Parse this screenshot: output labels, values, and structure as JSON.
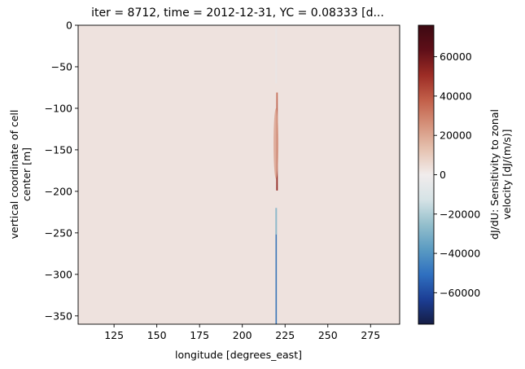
{
  "chart_data": {
    "type": "heatmap",
    "title": "iter = 8712, time = 2012-12-31, YC = 0.08333 [d...",
    "xlabel": "longitude [degrees_east]",
    "ylabel_lines": [
      "vertical coordinate of cell",
      "center [m]"
    ],
    "xlim": [
      104,
      292
    ],
    "ylim": [
      -360,
      0
    ],
    "x_ticks": [
      125,
      150,
      175,
      200,
      225,
      250,
      275
    ],
    "x_tick_labels": [
      "125",
      "150",
      "175",
      "200",
      "225",
      "250",
      "275"
    ],
    "y_ticks": [
      0,
      -50,
      -100,
      -150,
      -200,
      -250,
      -300,
      -350
    ],
    "y_tick_labels": [
      "0",
      "−50",
      "−100",
      "−150",
      "−200",
      "−250",
      "−300",
      "−350"
    ],
    "background_value": 3000,
    "features": [
      {
        "name": "positive-core",
        "x": 220.3,
        "y_top": -81,
        "y_bottom": -199,
        "peak": 70000
      },
      {
        "name": "positive-halo",
        "x": 219.7,
        "y_top": -100,
        "y_bottom": -185,
        "peak": 22000
      },
      {
        "name": "negative-upper",
        "x": 219.8,
        "y_top": -3,
        "y_bottom": -70,
        "peak": -5000
      },
      {
        "name": "negative-lower",
        "x": 219.8,
        "y_top": -220,
        "y_bottom": -360,
        "peak": -30000
      },
      {
        "name": "negative-streak",
        "x": 219.8,
        "y_top": -252,
        "y_bottom": -360,
        "peak": -55000
      }
    ],
    "colorbar": {
      "colormap": "diverging blue-white-red (balance)",
      "vmin": -76000,
      "vmax": 76000,
      "ticks": [
        60000,
        40000,
        20000,
        0,
        -20000,
        -40000,
        -60000
      ],
      "tick_labels": [
        "60000",
        "40000",
        "20000",
        "0",
        "−20000",
        "−40000",
        "−60000"
      ],
      "label_lines": [
        "dJ/dU: Sensitivity to zonal",
        "velocity [dJ/(m/s)]"
      ],
      "stops": [
        "#151d44",
        "#1c3e95",
        "#2f70c0",
        "#5a9bc2",
        "#94bfcc",
        "#d6e3e6",
        "#f1ecec",
        "#e6c3b1",
        "#d5927b",
        "#c25f49",
        "#9c2c25",
        "#5f0f18",
        "#3c0912"
      ]
    }
  }
}
